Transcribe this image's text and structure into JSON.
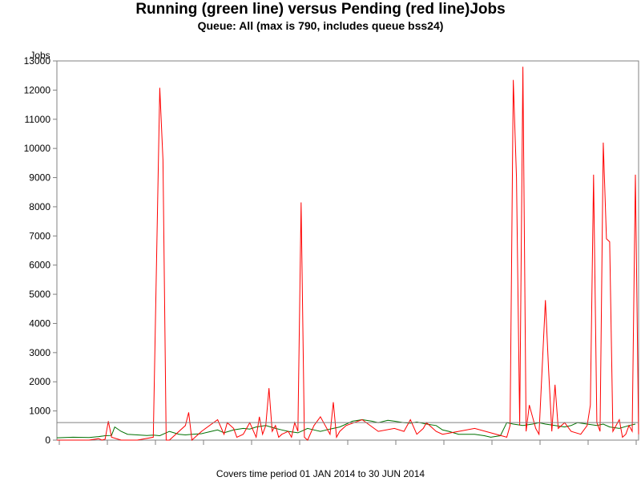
{
  "chart_data": {
    "type": "line",
    "title": "Running (green line) versus Pending (red line)Jobs",
    "subtitle": "Queue: All (max is 790, includes queue bss24)",
    "ylabel": "Jobs",
    "xlabel": "",
    "footnote": "Covers time period 01 JAN 2014 to 30 JUN 2014",
    "ylim": [
      0,
      13000
    ],
    "xlim": [
      0,
      181
    ],
    "y_ticks": [
      "0",
      "1000",
      "2000",
      "3000",
      "4000",
      "5000",
      "6000",
      "7000",
      "8000",
      "9000",
      "10000",
      "11000",
      "12000",
      "13000"
    ],
    "x_tick_count": 13,
    "reference_line": {
      "y": 600,
      "color": "#808080"
    },
    "grid": false,
    "series": [
      {
        "name": "Running",
        "color": "#007000",
        "x": [
          0,
          5,
          10,
          13,
          15,
          17,
          18,
          20,
          22,
          25,
          28,
          30,
          32,
          35,
          38,
          40,
          42,
          45,
          48,
          50,
          52,
          55,
          58,
          60,
          62,
          65,
          68,
          70,
          72,
          75,
          78,
          80,
          82,
          85,
          88,
          90,
          92,
          95,
          98,
          100,
          103,
          105,
          108,
          110,
          112,
          115,
          118,
          120,
          122,
          125,
          128,
          130,
          133,
          135,
          138,
          140,
          142,
          145,
          148,
          150,
          152,
          155,
          158,
          160,
          162,
          165,
          168,
          170,
          172,
          175,
          178,
          180
        ],
        "values": [
          80,
          100,
          90,
          120,
          150,
          160,
          450,
          300,
          200,
          180,
          160,
          170,
          150,
          300,
          200,
          180,
          200,
          220,
          300,
          350,
          250,
          350,
          400,
          380,
          450,
          500,
          400,
          350,
          300,
          250,
          400,
          350,
          300,
          380,
          450,
          550,
          650,
          700,
          650,
          600,
          680,
          650,
          600,
          580,
          620,
          550,
          500,
          350,
          300,
          200,
          200,
          200,
          150,
          100,
          150,
          600,
          550,
          500,
          550,
          600,
          550,
          500,
          450,
          500,
          600,
          550,
          500,
          550,
          450,
          400,
          500,
          550
        ]
      },
      {
        "name": "Pending",
        "color": "#ff0000",
        "x": [
          0,
          10,
          13,
          14,
          15,
          16,
          17,
          20,
          25,
          30,
          32,
          33,
          34,
          35,
          40,
          41,
          42,
          43,
          45,
          50,
          52,
          53,
          54,
          55,
          56,
          58,
          60,
          62,
          63,
          64,
          65,
          66,
          67,
          68,
          69,
          70,
          72,
          73,
          74,
          75,
          76,
          77,
          78,
          80,
          82,
          85,
          86,
          87,
          88,
          90,
          95,
          100,
          105,
          108,
          110,
          112,
          114,
          115,
          118,
          120,
          125,
          130,
          140,
          141,
          142,
          143,
          144,
          145,
          146,
          147,
          148,
          149,
          150,
          152,
          153,
          154,
          155,
          156,
          158,
          160,
          163,
          165,
          166,
          167,
          168,
          169,
          170,
          171,
          172,
          173,
          174,
          175,
          176,
          177,
          178,
          179,
          180,
          181
        ],
        "values": [
          0,
          0,
          50,
          0,
          30,
          650,
          100,
          0,
          0,
          100,
          12080,
          9600,
          0,
          0,
          500,
          950,
          0,
          100,
          300,
          700,
          200,
          600,
          500,
          400,
          100,
          200,
          600,
          100,
          800,
          200,
          500,
          1780,
          300,
          500,
          100,
          200,
          300,
          100,
          600,
          300,
          8150,
          100,
          0,
          500,
          800,
          200,
          1300,
          100,
          300,
          500,
          700,
          300,
          400,
          300,
          700,
          200,
          400,
          600,
          300,
          200,
          300,
          400,
          100,
          500,
          12350,
          9000,
          500,
          12800,
          300,
          1200,
          800,
          400,
          200,
          4800,
          2400,
          300,
          1900,
          400,
          600,
          300,
          200,
          500,
          1200,
          9100,
          600,
          300,
          10200,
          6900,
          6800,
          300,
          500,
          700,
          100,
          200,
          500,
          300,
          9100,
          200
        ]
      }
    ]
  }
}
